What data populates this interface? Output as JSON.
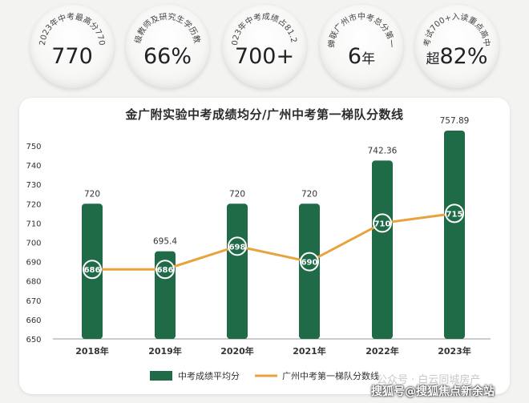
{
  "stats": [
    {
      "caption": "2023年中考最高分770",
      "value": "770",
      "prefix": "",
      "suffix": ""
    },
    {
      "caption": "一级教师及研究生学历教师",
      "value": "66%",
      "prefix": "",
      "suffix": ""
    },
    {
      "caption": "2023年中考成绩占81.2%",
      "value": "700+",
      "prefix": "",
      "suffix": ""
    },
    {
      "caption": "蝉联广州市中考总分第一",
      "value": "6",
      "prefix": "",
      "suffix": "年"
    },
    {
      "caption": "考试700+入读重点高中",
      "value": "82%",
      "prefix": "超",
      "suffix": ""
    }
  ],
  "chart_data": {
    "type": "bar",
    "title": "金广附实验中考成绩均分/广州中考第一梯队分数线",
    "categories": [
      "2018年",
      "2019年",
      "2020年",
      "2021年",
      "2022年",
      "2023年"
    ],
    "ylim": [
      650,
      760
    ],
    "yticks": [
      650,
      660,
      670,
      680,
      690,
      700,
      710,
      720,
      730,
      740,
      750
    ],
    "series": [
      {
        "name": "中考成绩平均分",
        "type": "bar",
        "color": "#1f6b48",
        "values": [
          720,
          695.4,
          720,
          720,
          742.36,
          757.89
        ],
        "labels": [
          "720",
          "695.4",
          "720",
          "720",
          "742.36",
          "757.89"
        ]
      },
      {
        "name": "广州中考第一梯队分数线",
        "type": "line",
        "color": "#e8a33c",
        "values": [
          686,
          686,
          698,
          690,
          710,
          715
        ],
        "labels": [
          "686",
          "686",
          "698",
          "690",
          "710",
          "715"
        ]
      }
    ],
    "legend": "bottom",
    "grid": false
  },
  "watermark": {
    "faint": "公众号 · 白云同城房产",
    "main": "搜狐号@搜狐焦点新余站"
  }
}
